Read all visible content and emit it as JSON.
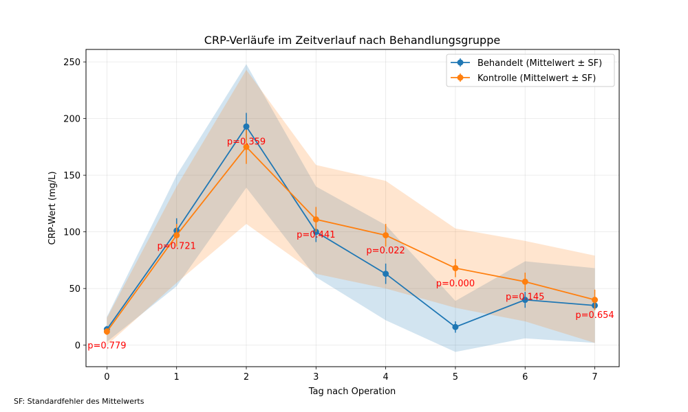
{
  "footnote": "SF: Standardfehler des Mittelwerts",
  "chart_data": {
    "type": "line",
    "title": "CRP-Verläufe im Zeitverlauf nach Behandlungsgruppe",
    "xlabel": "Tag nach Operation",
    "ylabel": "CRP-Wert (mg/L)",
    "x": [
      0,
      1,
      2,
      3,
      4,
      5,
      6,
      7
    ],
    "x_ticks": [
      0,
      1,
      2,
      3,
      4,
      5,
      6,
      7
    ],
    "y_ticks": [
      0,
      50,
      100,
      150,
      200,
      250
    ],
    "xlim": [
      -0.3,
      7.35
    ],
    "ylim": [
      -19,
      261
    ],
    "grid": true,
    "legend_position": "top-right",
    "series": [
      {
        "name": "Behandelt (Mittelwert ± SF)",
        "color": "#1f77b4",
        "values": [
          14,
          101,
          193,
          100,
          63,
          16,
          40,
          35
        ],
        "sem": [
          3,
          11,
          12,
          9,
          9,
          5,
          7,
          4
        ],
        "band_lower": [
          3,
          52,
          139,
          60,
          22,
          -6,
          6,
          2
        ],
        "band_upper": [
          25,
          150,
          248,
          140,
          106,
          39,
          74,
          68
        ]
      },
      {
        "name": "Kontrolle (Mittelwert ± SF)",
        "color": "#ff7f0e",
        "values": [
          12,
          97,
          175,
          111,
          97,
          68,
          56,
          40
        ],
        "sem": [
          3,
          10,
          15,
          11,
          10,
          8,
          8,
          9
        ],
        "band_lower": [
          0,
          55,
          107,
          63,
          50,
          33,
          21,
          2
        ],
        "band_upper": [
          24,
          140,
          243,
          159,
          145,
          103,
          92,
          79
        ]
      }
    ],
    "annotations": [
      {
        "x": 0,
        "y": 0,
        "text": "p=0.779"
      },
      {
        "x": 1,
        "y": 88,
        "text": "p=0.721"
      },
      {
        "x": 2,
        "y": 180,
        "text": "p=0.359"
      },
      {
        "x": 3,
        "y": 98,
        "text": "p=0.441"
      },
      {
        "x": 4,
        "y": 84,
        "text": "p=0.022"
      },
      {
        "x": 5,
        "y": 55,
        "text": "p=0.000"
      },
      {
        "x": 6,
        "y": 43,
        "text": "p=0.145"
      },
      {
        "x": 7,
        "y": 27,
        "text": "p=0.654"
      }
    ],
    "annotation_color": "#ff0000"
  }
}
